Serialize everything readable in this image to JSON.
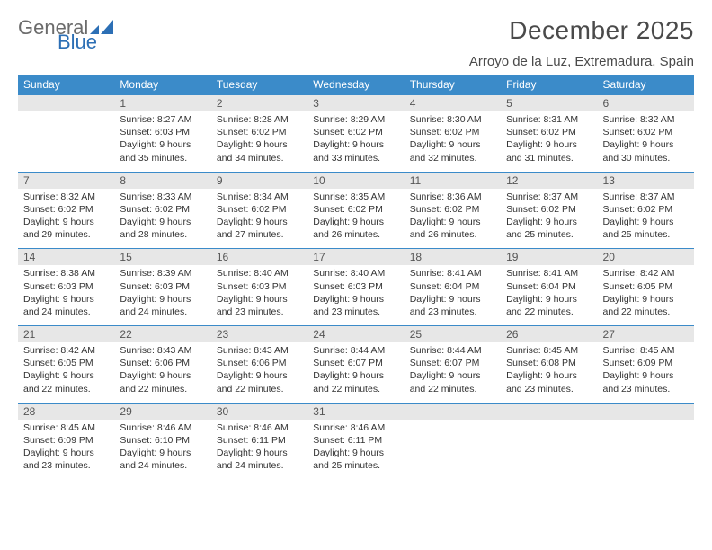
{
  "logo": {
    "text1": "General",
    "text2": "Blue"
  },
  "title": "December 2025",
  "subtitle": "Arroyo de la Luz, Extremadura, Spain",
  "colors": {
    "header_bg": "#3b8bc9",
    "header_text": "#ffffff",
    "daynum_bg": "#e7e7e7",
    "border": "#3b8bc9",
    "title_color": "#4a4a4a",
    "logo_gray": "#6b6b6b",
    "logo_blue": "#2c6fb5"
  },
  "day_names": [
    "Sunday",
    "Monday",
    "Tuesday",
    "Wednesday",
    "Thursday",
    "Friday",
    "Saturday"
  ],
  "labels": {
    "sunrise": "Sunrise:",
    "sunset": "Sunset:",
    "daylight": "Daylight:"
  },
  "weeks": [
    [
      null,
      {
        "n": "1",
        "sr": "8:27 AM",
        "ss": "6:03 PM",
        "dl": "9 hours and 35 minutes."
      },
      {
        "n": "2",
        "sr": "8:28 AM",
        "ss": "6:02 PM",
        "dl": "9 hours and 34 minutes."
      },
      {
        "n": "3",
        "sr": "8:29 AM",
        "ss": "6:02 PM",
        "dl": "9 hours and 33 minutes."
      },
      {
        "n": "4",
        "sr": "8:30 AM",
        "ss": "6:02 PM",
        "dl": "9 hours and 32 minutes."
      },
      {
        "n": "5",
        "sr": "8:31 AM",
        "ss": "6:02 PM",
        "dl": "9 hours and 31 minutes."
      },
      {
        "n": "6",
        "sr": "8:32 AM",
        "ss": "6:02 PM",
        "dl": "9 hours and 30 minutes."
      }
    ],
    [
      {
        "n": "7",
        "sr": "8:32 AM",
        "ss": "6:02 PM",
        "dl": "9 hours and 29 minutes."
      },
      {
        "n": "8",
        "sr": "8:33 AM",
        "ss": "6:02 PM",
        "dl": "9 hours and 28 minutes."
      },
      {
        "n": "9",
        "sr": "8:34 AM",
        "ss": "6:02 PM",
        "dl": "9 hours and 27 minutes."
      },
      {
        "n": "10",
        "sr": "8:35 AM",
        "ss": "6:02 PM",
        "dl": "9 hours and 26 minutes."
      },
      {
        "n": "11",
        "sr": "8:36 AM",
        "ss": "6:02 PM",
        "dl": "9 hours and 26 minutes."
      },
      {
        "n": "12",
        "sr": "8:37 AM",
        "ss": "6:02 PM",
        "dl": "9 hours and 25 minutes."
      },
      {
        "n": "13",
        "sr": "8:37 AM",
        "ss": "6:02 PM",
        "dl": "9 hours and 25 minutes."
      }
    ],
    [
      {
        "n": "14",
        "sr": "8:38 AM",
        "ss": "6:03 PM",
        "dl": "9 hours and 24 minutes."
      },
      {
        "n": "15",
        "sr": "8:39 AM",
        "ss": "6:03 PM",
        "dl": "9 hours and 24 minutes."
      },
      {
        "n": "16",
        "sr": "8:40 AM",
        "ss": "6:03 PM",
        "dl": "9 hours and 23 minutes."
      },
      {
        "n": "17",
        "sr": "8:40 AM",
        "ss": "6:03 PM",
        "dl": "9 hours and 23 minutes."
      },
      {
        "n": "18",
        "sr": "8:41 AM",
        "ss": "6:04 PM",
        "dl": "9 hours and 23 minutes."
      },
      {
        "n": "19",
        "sr": "8:41 AM",
        "ss": "6:04 PM",
        "dl": "9 hours and 22 minutes."
      },
      {
        "n": "20",
        "sr": "8:42 AM",
        "ss": "6:05 PM",
        "dl": "9 hours and 22 minutes."
      }
    ],
    [
      {
        "n": "21",
        "sr": "8:42 AM",
        "ss": "6:05 PM",
        "dl": "9 hours and 22 minutes."
      },
      {
        "n": "22",
        "sr": "8:43 AM",
        "ss": "6:06 PM",
        "dl": "9 hours and 22 minutes."
      },
      {
        "n": "23",
        "sr": "8:43 AM",
        "ss": "6:06 PM",
        "dl": "9 hours and 22 minutes."
      },
      {
        "n": "24",
        "sr": "8:44 AM",
        "ss": "6:07 PM",
        "dl": "9 hours and 22 minutes."
      },
      {
        "n": "25",
        "sr": "8:44 AM",
        "ss": "6:07 PM",
        "dl": "9 hours and 22 minutes."
      },
      {
        "n": "26",
        "sr": "8:45 AM",
        "ss": "6:08 PM",
        "dl": "9 hours and 23 minutes."
      },
      {
        "n": "27",
        "sr": "8:45 AM",
        "ss": "6:09 PM",
        "dl": "9 hours and 23 minutes."
      }
    ],
    [
      {
        "n": "28",
        "sr": "8:45 AM",
        "ss": "6:09 PM",
        "dl": "9 hours and 23 minutes."
      },
      {
        "n": "29",
        "sr": "8:46 AM",
        "ss": "6:10 PM",
        "dl": "9 hours and 24 minutes."
      },
      {
        "n": "30",
        "sr": "8:46 AM",
        "ss": "6:11 PM",
        "dl": "9 hours and 24 minutes."
      },
      {
        "n": "31",
        "sr": "8:46 AM",
        "ss": "6:11 PM",
        "dl": "9 hours and 25 minutes."
      },
      null,
      null,
      null
    ]
  ]
}
